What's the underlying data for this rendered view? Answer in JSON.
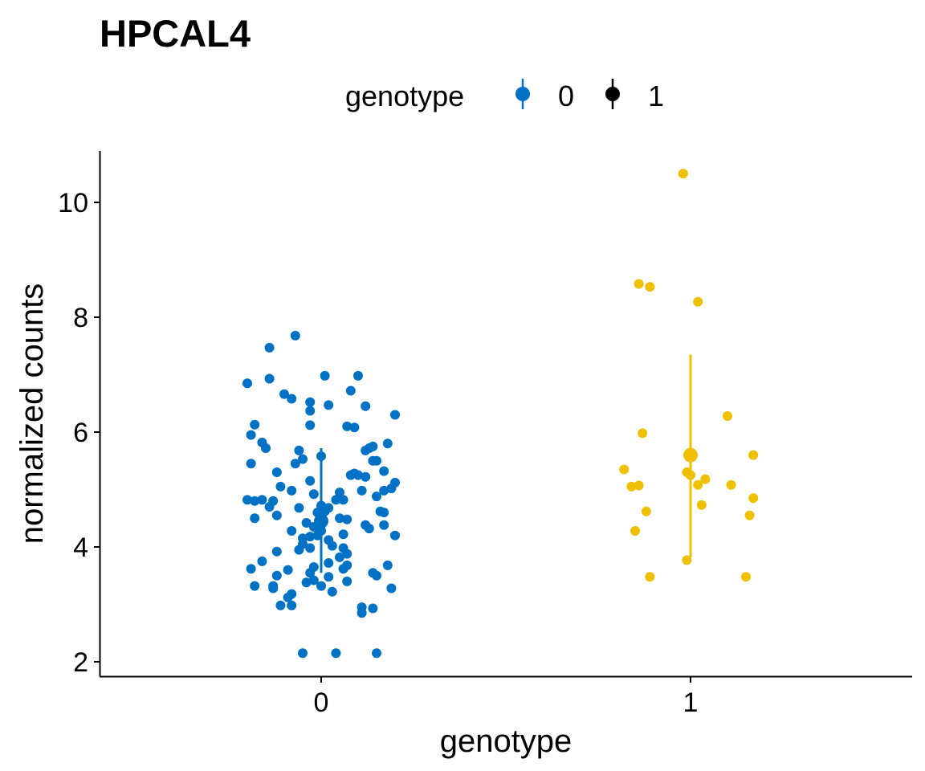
{
  "chart_data": {
    "type": "scatter",
    "title": "HPCAL4",
    "xlabel": "genotype",
    "ylabel": "normalized counts",
    "categories": [
      "0",
      "1"
    ],
    "ylim": [
      1.75,
      10.9
    ],
    "yticks": [
      2,
      4,
      6,
      8,
      10
    ],
    "legend": {
      "title": "genotype",
      "placement": "top",
      "entries": [
        {
          "label": "0",
          "color": "#0072C6"
        },
        {
          "label": "1",
          "color": "#EFC000"
        }
      ]
    },
    "grid": false,
    "series": [
      {
        "name": "0",
        "category": "0",
        "color": "#0072C6",
        "summary": {
          "mean": 4.45,
          "lower": 3.55,
          "upper": 5.72
        },
        "points": [
          [
            -0.07,
            7.68
          ],
          [
            -0.14,
            7.47
          ],
          [
            -0.2,
            6.85
          ],
          [
            0.01,
            6.98
          ],
          [
            0.1,
            6.98
          ],
          [
            -0.14,
            6.93
          ],
          [
            0.08,
            6.72
          ],
          [
            -0.1,
            6.66
          ],
          [
            -0.08,
            6.58
          ],
          [
            -0.03,
            6.52
          ],
          [
            0.02,
            6.47
          ],
          [
            0.12,
            6.45
          ],
          [
            -0.03,
            6.37
          ],
          [
            0.2,
            6.3
          ],
          [
            -0.18,
            6.13
          ],
          [
            -0.03,
            6.12
          ],
          [
            0.07,
            6.1
          ],
          [
            0.09,
            6.08
          ],
          [
            -0.19,
            5.95
          ],
          [
            -0.16,
            5.82
          ],
          [
            0.18,
            5.8
          ],
          [
            -0.15,
            5.72
          ],
          [
            0.13,
            5.72
          ],
          [
            0.14,
            5.75
          ],
          [
            0.12,
            5.68
          ],
          [
            -0.06,
            5.68
          ],
          [
            0.0,
            5.58
          ],
          [
            -0.05,
            5.53
          ],
          [
            -0.07,
            5.45
          ],
          [
            -0.19,
            5.45
          ],
          [
            0.14,
            5.5
          ],
          [
            0.15,
            5.5
          ],
          [
            -0.12,
            5.3
          ],
          [
            0.17,
            5.32
          ],
          [
            0.08,
            5.25
          ],
          [
            0.09,
            5.28
          ],
          [
            0.1,
            5.25
          ],
          [
            0.12,
            5.22
          ],
          [
            -0.03,
            5.15
          ],
          [
            0.2,
            5.12
          ],
          [
            -0.11,
            5.05
          ],
          [
            0.19,
            5.02
          ],
          [
            -0.08,
            4.98
          ],
          [
            0.11,
            4.98
          ],
          [
            0.17,
            4.98
          ],
          [
            0.05,
            4.95
          ],
          [
            -0.02,
            4.92
          ],
          [
            0.15,
            4.88
          ],
          [
            0.04,
            4.82
          ],
          [
            0.06,
            4.82
          ],
          [
            -0.2,
            4.82
          ],
          [
            -0.18,
            4.8
          ],
          [
            -0.16,
            4.82
          ],
          [
            -0.13,
            4.8
          ],
          [
            0.0,
            4.72
          ],
          [
            -0.14,
            4.7
          ],
          [
            0.02,
            4.68
          ],
          [
            -0.06,
            4.68
          ],
          [
            0.01,
            4.62
          ],
          [
            -0.01,
            4.6
          ],
          [
            0.16,
            4.62
          ],
          [
            0.17,
            4.6
          ],
          [
            -0.12,
            4.55
          ],
          [
            -0.18,
            4.5
          ],
          [
            0.05,
            4.5
          ],
          [
            0.07,
            4.48
          ],
          [
            -0.04,
            4.42
          ],
          [
            0.0,
            4.38
          ],
          [
            0.12,
            4.38
          ],
          [
            -0.02,
            4.35
          ],
          [
            0.13,
            4.32
          ],
          [
            0.0,
            4.28
          ],
          [
            0.17,
            4.38
          ],
          [
            -0.08,
            4.28
          ],
          [
            -0.01,
            4.2
          ],
          [
            0.06,
            4.22
          ],
          [
            0.2,
            4.2
          ],
          [
            -0.03,
            4.18
          ],
          [
            -0.05,
            4.15
          ],
          [
            0.02,
            4.12
          ],
          [
            -0.05,
            4.05
          ],
          [
            0.03,
            4.02
          ],
          [
            -0.03,
            3.98
          ],
          [
            0.06,
            3.98
          ],
          [
            -0.06,
            3.95
          ],
          [
            -0.12,
            3.92
          ],
          [
            0.07,
            3.88
          ],
          [
            0.05,
            3.82
          ],
          [
            -0.16,
            3.75
          ],
          [
            0.02,
            3.72
          ],
          [
            0.07,
            3.68
          ],
          [
            0.06,
            3.62
          ],
          [
            -0.19,
            3.62
          ],
          [
            0.18,
            3.68
          ],
          [
            -0.02,
            3.65
          ],
          [
            -0.09,
            3.6
          ],
          [
            -0.03,
            3.55
          ],
          [
            -0.12,
            3.5
          ],
          [
            0.14,
            3.55
          ],
          [
            0.15,
            3.5
          ],
          [
            0.02,
            3.48
          ],
          [
            0.07,
            3.4
          ],
          [
            -0.04,
            3.38
          ],
          [
            -0.02,
            3.42
          ],
          [
            -0.18,
            3.32
          ],
          [
            -0.13,
            3.32
          ],
          [
            0.0,
            3.32
          ],
          [
            0.19,
            3.28
          ],
          [
            -0.13,
            3.28
          ],
          [
            0.03,
            3.22
          ],
          [
            -0.08,
            3.18
          ],
          [
            -0.09,
            3.12
          ],
          [
            -0.11,
            2.98
          ],
          [
            -0.08,
            2.98
          ],
          [
            0.11,
            2.95
          ],
          [
            0.14,
            2.93
          ],
          [
            0.11,
            2.85
          ],
          [
            -0.05,
            2.15
          ],
          [
            0.04,
            2.15
          ],
          [
            0.15,
            2.15
          ]
        ]
      },
      {
        "name": "1",
        "category": "1",
        "color": "#EFC000",
        "summary": {
          "mean": 5.6,
          "lower": 3.82,
          "upper": 7.35
        },
        "points": [
          [
            0.98,
            10.5
          ],
          [
            0.86,
            8.58
          ],
          [
            0.89,
            8.53
          ],
          [
            1.02,
            8.27
          ],
          [
            1.1,
            6.28
          ],
          [
            0.87,
            5.98
          ],
          [
            1.17,
            5.6
          ],
          [
            0.82,
            5.35
          ],
          [
            0.99,
            5.3
          ],
          [
            1.0,
            5.25
          ],
          [
            1.04,
            5.18
          ],
          [
            1.02,
            5.08
          ],
          [
            1.11,
            5.08
          ],
          [
            0.84,
            5.05
          ],
          [
            0.86,
            5.07
          ],
          [
            1.17,
            4.85
          ],
          [
            1.03,
            4.73
          ],
          [
            0.88,
            4.62
          ],
          [
            1.16,
            4.55
          ],
          [
            0.85,
            4.28
          ],
          [
            0.99,
            3.77
          ],
          [
            0.89,
            3.48
          ],
          [
            1.15,
            3.48
          ]
        ]
      }
    ]
  }
}
